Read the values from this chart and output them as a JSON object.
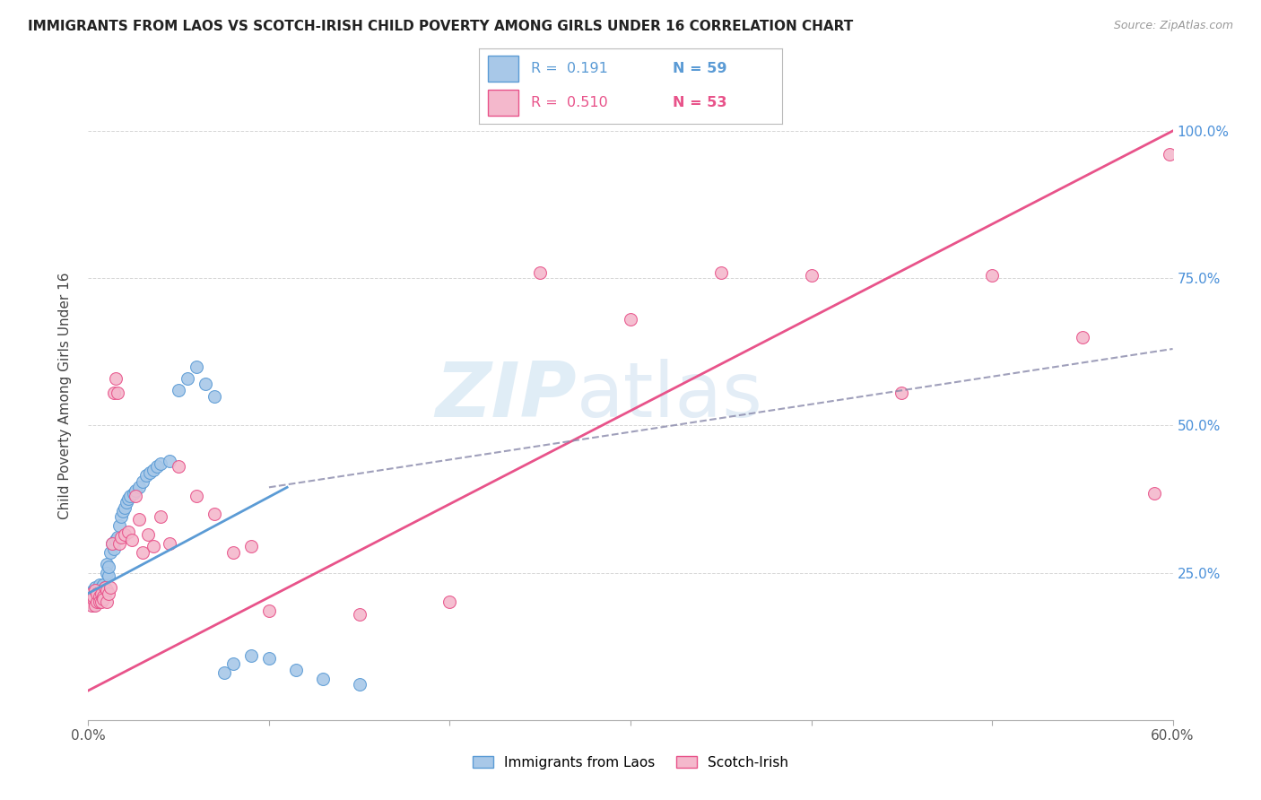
{
  "title": "IMMIGRANTS FROM LAOS VS SCOTCH-IRISH CHILD POVERTY AMONG GIRLS UNDER 16 CORRELATION CHART",
  "source": "Source: ZipAtlas.com",
  "ylabel": "Child Poverty Among Girls Under 16",
  "xlim": [
    0.0,
    0.6
  ],
  "ylim": [
    0.0,
    1.1
  ],
  "color_laos": "#a8c8e8",
  "color_scotch": "#f4b8cc",
  "color_line_laos": "#5b9bd5",
  "color_line_scotch": "#e8538a",
  "color_dashed": "#8888aa",
  "background_color": "#ffffff",
  "watermark_zip": "ZIP",
  "watermark_atlas": "atlas",
  "legend_r1": "R =  0.191",
  "legend_n1": "N = 59",
  "legend_r2": "R =  0.510",
  "legend_n2": "N = 53",
  "laos_scatter_x": [
    0.001,
    0.002,
    0.002,
    0.003,
    0.003,
    0.003,
    0.004,
    0.004,
    0.004,
    0.005,
    0.005,
    0.006,
    0.006,
    0.006,
    0.007,
    0.007,
    0.007,
    0.008,
    0.008,
    0.009,
    0.009,
    0.01,
    0.01,
    0.011,
    0.011,
    0.012,
    0.013,
    0.014,
    0.015,
    0.016,
    0.017,
    0.018,
    0.019,
    0.02,
    0.021,
    0.022,
    0.023,
    0.025,
    0.026,
    0.028,
    0.03,
    0.032,
    0.034,
    0.036,
    0.038,
    0.04,
    0.045,
    0.05,
    0.055,
    0.06,
    0.065,
    0.07,
    0.075,
    0.08,
    0.09,
    0.1,
    0.115,
    0.13,
    0.15
  ],
  "laos_scatter_y": [
    0.205,
    0.2,
    0.21,
    0.215,
    0.195,
    0.22,
    0.2,
    0.21,
    0.225,
    0.215,
    0.205,
    0.22,
    0.23,
    0.21,
    0.215,
    0.225,
    0.205,
    0.22,
    0.23,
    0.215,
    0.225,
    0.265,
    0.25,
    0.245,
    0.26,
    0.285,
    0.3,
    0.29,
    0.305,
    0.31,
    0.33,
    0.345,
    0.355,
    0.36,
    0.37,
    0.375,
    0.38,
    0.385,
    0.39,
    0.395,
    0.405,
    0.415,
    0.42,
    0.425,
    0.43,
    0.435,
    0.44,
    0.56,
    0.58,
    0.6,
    0.57,
    0.55,
    0.08,
    0.095,
    0.11,
    0.105,
    0.085,
    0.07,
    0.06
  ],
  "scotch_scatter_x": [
    0.001,
    0.002,
    0.002,
    0.003,
    0.003,
    0.004,
    0.004,
    0.005,
    0.005,
    0.006,
    0.006,
    0.007,
    0.007,
    0.008,
    0.008,
    0.009,
    0.01,
    0.01,
    0.011,
    0.012,
    0.013,
    0.014,
    0.015,
    0.016,
    0.017,
    0.018,
    0.02,
    0.022,
    0.024,
    0.026,
    0.028,
    0.03,
    0.033,
    0.036,
    0.04,
    0.045,
    0.05,
    0.06,
    0.07,
    0.08,
    0.09,
    0.1,
    0.15,
    0.2,
    0.25,
    0.3,
    0.35,
    0.4,
    0.45,
    0.5,
    0.55,
    0.59,
    0.598
  ],
  "scotch_scatter_y": [
    0.2,
    0.195,
    0.215,
    0.205,
    0.21,
    0.195,
    0.22,
    0.2,
    0.215,
    0.21,
    0.2,
    0.215,
    0.2,
    0.21,
    0.205,
    0.225,
    0.22,
    0.2,
    0.215,
    0.225,
    0.3,
    0.555,
    0.58,
    0.555,
    0.3,
    0.31,
    0.315,
    0.32,
    0.305,
    0.38,
    0.34,
    0.285,
    0.315,
    0.295,
    0.345,
    0.3,
    0.43,
    0.38,
    0.35,
    0.285,
    0.295,
    0.185,
    0.18,
    0.2,
    0.76,
    0.68,
    0.76,
    0.755,
    0.555,
    0.755,
    0.65,
    0.385,
    0.96
  ],
  "laos_line_x0": 0.0,
  "laos_line_y0": 0.215,
  "laos_line_x1": 0.11,
  "laos_line_y1": 0.395,
  "scotch_line_x0": 0.0,
  "scotch_line_y0": 0.05,
  "scotch_line_x1": 0.6,
  "scotch_line_y1": 1.0,
  "dashed_line_x0": 0.1,
  "dashed_line_y0": 0.395,
  "dashed_line_x1": 0.6,
  "dashed_line_y1": 0.63
}
